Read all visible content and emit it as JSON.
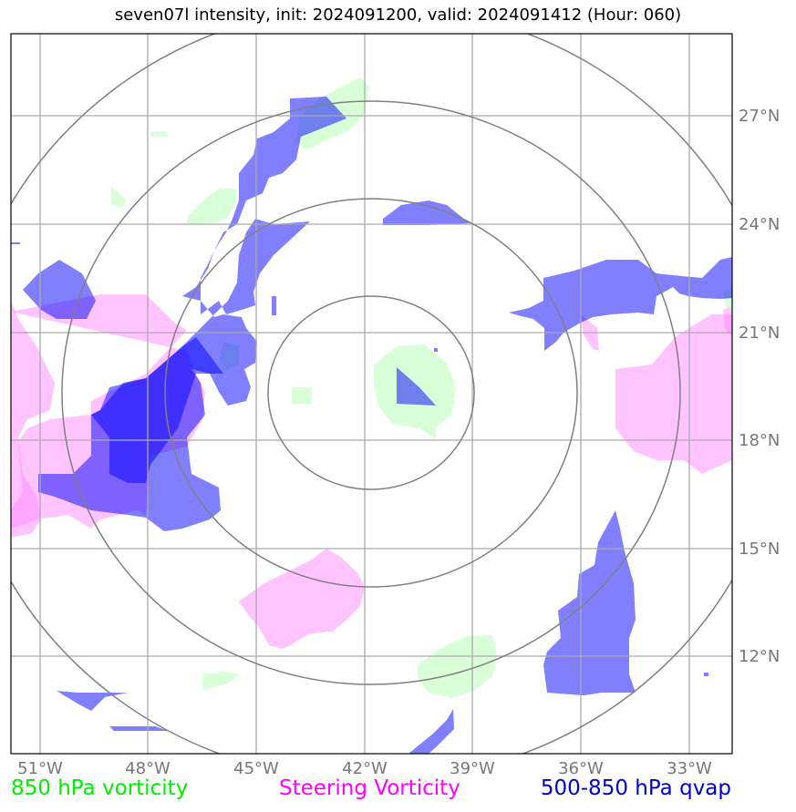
{
  "title": "seven07l intensity, init: 2024091200, valid: 2024091412 (Hour: 060)",
  "map": {
    "longitude_labels": [
      "51°W",
      "48°W",
      "45°W",
      "42°W",
      "39°W",
      "36°W",
      "33°W"
    ],
    "latitude_labels": [
      "27°N",
      "24°N",
      "21°N",
      "18°N",
      "15°N",
      "12°N"
    ],
    "range_rings": 4,
    "gridlines": true,
    "colors": {
      "vorticity_850": "#ccffcc",
      "steering_vorticity": "#ffaaff",
      "qvap": "#0000ff",
      "grid": "#aaaaaa",
      "rings": "#808080"
    }
  },
  "legend": {
    "vorticity_850": "850 hPa vorticity",
    "steering_vorticity": "Steering Vorticity",
    "qvap": "500-850 hPa qvap"
  }
}
